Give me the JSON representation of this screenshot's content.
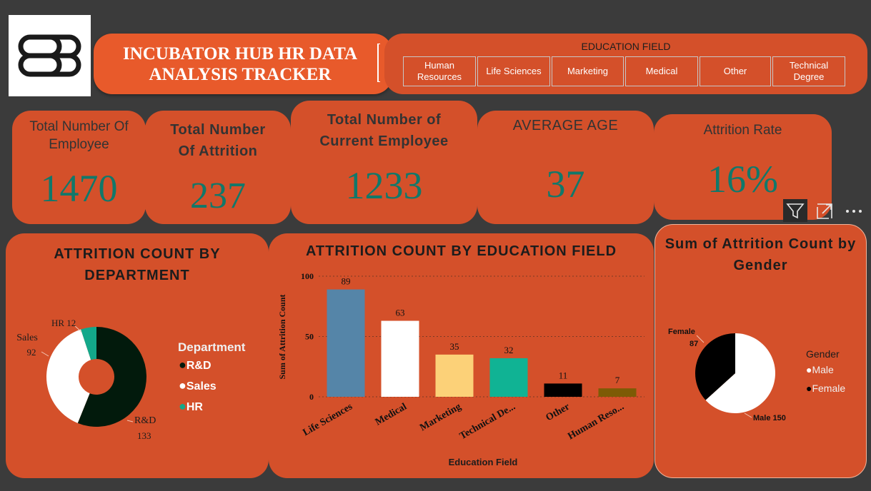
{
  "header": {
    "title_line1": "INCUBATOR HUB HR DATA",
    "title_line2": "ANALYSIS TRACKER"
  },
  "education_slicer": {
    "label": "EDUCATION FIELD",
    "options": [
      "Human Resources",
      "Life Sciences",
      "Marketing",
      "Medical",
      "Other",
      "Technical Degree"
    ]
  },
  "kpis": {
    "total_employee": {
      "label": "Total Number Of Employee",
      "value": "1470"
    },
    "total_attrition": {
      "label": "Total Number Of Attrition",
      "value": "237"
    },
    "current_employee": {
      "label": "Total Number of Current Employee",
      "value": "1233"
    },
    "average_age": {
      "label": "AVERAGE AGE",
      "value": "37"
    },
    "attrition_rate": {
      "label": "Attrition Rate",
      "value": "16%"
    }
  },
  "visual_header_icons": [
    "filter-icon",
    "focus-mode-icon",
    "more-options-icon"
  ],
  "colors": {
    "background": "#3b3b3b",
    "card": "#d4502a",
    "title_pill": "#e85a2b",
    "kpi_value": "#11786a"
  },
  "chart_data": [
    {
      "type": "pie",
      "title": "ATTRITION COUNT BY DEPARTMENT",
      "legend_title": "Department",
      "legend_position": "right",
      "slices": [
        {
          "label": "R&D",
          "value": 133,
          "color": "#021a0c"
        },
        {
          "label": "Sales",
          "value": 92,
          "color": "#ffffff"
        },
        {
          "label": "HR",
          "value": 12,
          "color": "#13a88a"
        }
      ]
    },
    {
      "type": "bar",
      "title": "ATTRITION COUNT BY EDUCATION FIELD",
      "xlabel": "Education Field",
      "ylabel": "Sum of Attrition Count",
      "ylim": [
        0,
        100
      ],
      "yticks": [
        0,
        50,
        100
      ],
      "grid": true,
      "categories": [
        "Life Sciences",
        "Medical",
        "Marketing",
        "Technical De...",
        "Other",
        "Human Reso..."
      ],
      "values": [
        89,
        63,
        35,
        32,
        11,
        7
      ],
      "colors": [
        "#5585a8",
        "#ffffff",
        "#fcd178",
        "#10b394",
        "#000000",
        "#7d5b06"
      ]
    },
    {
      "type": "pie",
      "title": "Sum of Attrition Count by Gender",
      "legend_title": "Gender",
      "legend_position": "right",
      "slices": [
        {
          "label": "Male",
          "value": 150,
          "color": "#ffffff"
        },
        {
          "label": "Female",
          "value": 87,
          "color": "#000000"
        }
      ]
    }
  ]
}
